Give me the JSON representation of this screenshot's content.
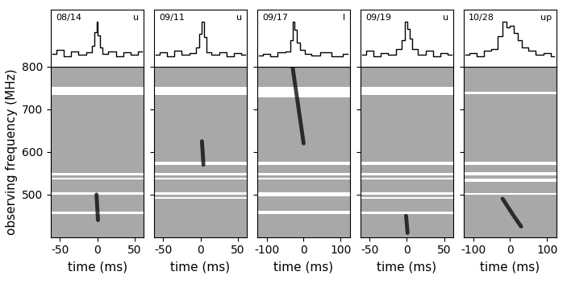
{
  "chart_data": [
    {
      "type": "dynamic_spectrum",
      "title": "08/14",
      "annotation": "u",
      "xlabel": "time (ms)",
      "ylabel": "observing frequency (MHz)",
      "xlim": [
        -62,
        62
      ],
      "xticks": [
        -50,
        0,
        50
      ],
      "ylim": [
        400,
        800
      ],
      "yticks": [
        500,
        600,
        700,
        800
      ],
      "masked_channels": [
        [
          733,
          753
        ],
        [
          545,
          550
        ],
        [
          535,
          540
        ],
        [
          500,
          505
        ],
        [
          455,
          460
        ]
      ],
      "burst": {
        "time": [
          -1,
          0,
          1
        ],
        "frequency": [
          500,
          470,
          440
        ]
      },
      "profile": {
        "x": [
          -60,
          -50,
          -40,
          -30,
          -20,
          -10,
          -5,
          -2,
          0,
          2,
          5,
          10,
          20,
          30,
          40,
          50,
          60
        ],
        "values": [
          1,
          1.3,
          0.8,
          1.2,
          0.9,
          1.1,
          1.6,
          2.6,
          3.4,
          2.4,
          1.5,
          1.0,
          1.2,
          0.8,
          1.1,
          0.9,
          1.2
        ]
      }
    },
    {
      "type": "dynamic_spectrum",
      "title": "09/11",
      "annotation": "u",
      "xlabel": "time (ms)",
      "tick_labels": "x",
      "xlim": [
        -62,
        62
      ],
      "xticks": [
        -50,
        0,
        50
      ],
      "ylim": [
        400,
        800
      ],
      "yticks": [
        500,
        600,
        700,
        800
      ],
      "masked_channels": [
        [
          733,
          753
        ],
        [
          570,
          578
        ],
        [
          545,
          550
        ],
        [
          535,
          540
        ],
        [
          500,
          505
        ],
        [
          490,
          494
        ]
      ],
      "burst": {
        "time": [
          2,
          3,
          4
        ],
        "frequency": [
          625,
          600,
          570
        ]
      },
      "profile": {
        "x": [
          -60,
          -50,
          -40,
          -30,
          -20,
          -10,
          -3,
          0,
          3,
          6,
          10,
          20,
          30,
          40,
          50,
          60
        ],
        "values": [
          1,
          1.2,
          0.9,
          1.3,
          1.0,
          1.1,
          1.5,
          2.4,
          3.2,
          2.2,
          1.2,
          1.0,
          1.2,
          0.9,
          1.1,
          1.0
        ]
      }
    },
    {
      "type": "dynamic_spectrum",
      "title": "09/17",
      "annotation": "l",
      "xlabel": "time (ms)",
      "tick_labels": "x",
      "xlim": [
        -125,
        125
      ],
      "xticks": [
        -100,
        0,
        100
      ],
      "ylim": [
        400,
        800
      ],
      "yticks": [
        500,
        600,
        700,
        800
      ],
      "masked_channels": [
        [
          728,
          753
        ],
        [
          570,
          578
        ],
        [
          545,
          550
        ],
        [
          535,
          540
        ],
        [
          495,
          505
        ],
        [
          455,
          462
        ]
      ],
      "burst": {
        "time": [
          -30,
          -20,
          -10,
          0
        ],
        "frequency": [
          800,
          740,
          680,
          620
        ]
      },
      "profile": {
        "x": [
          -120,
          -100,
          -80,
          -60,
          -40,
          -32,
          -28,
          -22,
          -15,
          -5,
          10,
          30,
          60,
          90,
          120
        ],
        "values": [
          1,
          1.1,
          0.9,
          1.2,
          1.3,
          2.2,
          3.6,
          3.0,
          2.0,
          1.4,
          1.1,
          1.0,
          1.2,
          0.9,
          1.1
        ]
      }
    },
    {
      "type": "dynamic_spectrum",
      "title": "09/19",
      "annotation": "u",
      "xlabel": "time (ms)",
      "tick_labels": "x",
      "xlim": [
        -62,
        62
      ],
      "xticks": [
        -50,
        0,
        50
      ],
      "ylim": [
        400,
        800
      ],
      "yticks": [
        500,
        600,
        700,
        800
      ],
      "masked_channels": [
        [
          733,
          753
        ],
        [
          570,
          578
        ],
        [
          545,
          550
        ],
        [
          535,
          540
        ],
        [
          500,
          505
        ],
        [
          490,
          494
        ],
        [
          455,
          460
        ]
      ],
      "burst": {
        "time": [
          -1,
          0,
          1
        ],
        "frequency": [
          450,
          430,
          410
        ]
      },
      "profile": {
        "x": [
          -60,
          -50,
          -40,
          -30,
          -20,
          -10,
          -4,
          -1,
          2,
          5,
          10,
          20,
          30,
          40,
          50,
          60
        ],
        "values": [
          1,
          1.2,
          0.9,
          1.1,
          1.0,
          1.3,
          1.8,
          2.8,
          2.4,
          1.9,
          1.3,
          1.0,
          1.2,
          0.9,
          1.1,
          1.0
        ]
      }
    },
    {
      "type": "dynamic_spectrum",
      "title": "10/28",
      "annotation": "up",
      "xlabel": "time (ms)",
      "tick_labels": "x",
      "xlim": [
        -125,
        125
      ],
      "xticks": [
        -100,
        0,
        100
      ],
      "ylim": [
        400,
        800
      ],
      "yticks": [
        500,
        600,
        700,
        800
      ],
      "masked_channels": [
        [
          735,
          741
        ],
        [
          570,
          578
        ],
        [
          545,
          552
        ],
        [
          530,
          537
        ],
        [
          500,
          504
        ]
      ],
      "burst": {
        "time": [
          -20,
          -5,
          10,
          30
        ],
        "frequency": [
          490,
          470,
          450,
          425
        ]
      },
      "profile": {
        "x": [
          -120,
          -100,
          -80,
          -60,
          -40,
          -25,
          -15,
          -5,
          5,
          15,
          25,
          40,
          60,
          80,
          100,
          120
        ],
        "values": [
          1,
          1.1,
          0.9,
          1.2,
          1.3,
          2.0,
          2.8,
          2.5,
          2.6,
          2.2,
          1.8,
          1.4,
          1.2,
          1.0,
          1.1,
          0.9
        ]
      }
    }
  ]
}
